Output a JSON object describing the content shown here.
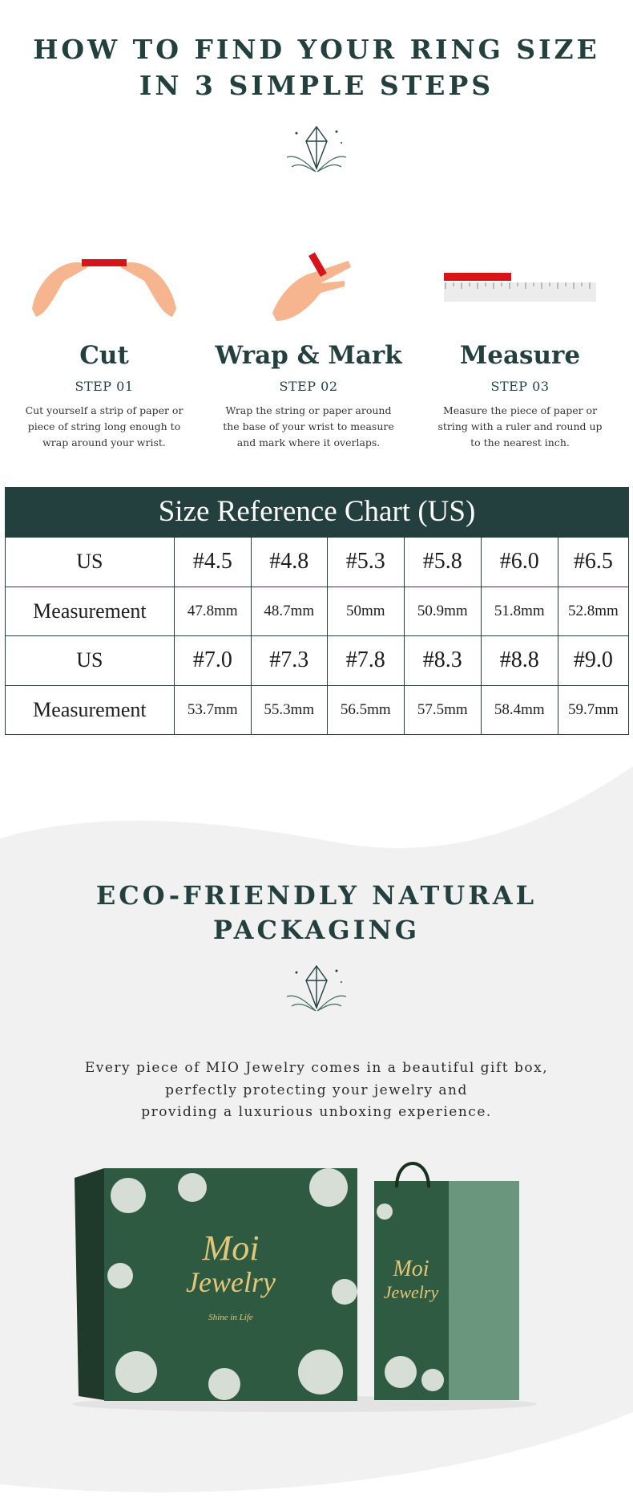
{
  "header": {
    "title_lines": [
      "HOW TO FIND YOUR RING SIZE",
      "IN 3 SIMPLE STEPS"
    ]
  },
  "steps": [
    {
      "title": "Cut",
      "step": "STEP 01",
      "text_lines": [
        "Cut yourself a strip of paper or",
        "piece of string long enough to",
        "wrap around your wrist."
      ]
    },
    {
      "title": "Wrap & Mark",
      "step": "STEP 02",
      "text_lines": [
        "Wrap the string or paper around",
        "the base of your wrist to measure",
        "and mark where it overlaps."
      ]
    },
    {
      "title": "Measure",
      "step": "STEP 03",
      "text_lines": [
        "Measure the piece of paper or",
        "string with a ruler and round up",
        "to the nearest inch."
      ]
    }
  ],
  "size_chart": {
    "title": "Size Reference Chart (US)",
    "rows": [
      [
        "US",
        "#4.5",
        "#4.8",
        "#5.3",
        "#5.8",
        "#6.0",
        "#6.5"
      ],
      [
        "Measurement",
        "47.8mm",
        "48.7mm",
        "50mm",
        "50.9mm",
        "51.8mm",
        "52.8mm"
      ],
      [
        "US",
        "#7.0",
        "#7.3",
        "#7.8",
        "#8.3",
        "#8.8",
        "#9.0"
      ],
      [
        "Measurement",
        "53.7mm",
        "55.3mm",
        "56.5mm",
        "57.5mm",
        "58.4mm",
        "59.7mm"
      ]
    ]
  },
  "packaging": {
    "title_lines": [
      "ECO-FRIENDLY NATURAL",
      "PACKAGING"
    ],
    "text_lines": [
      "Every piece of MIO Jewelry comes in a beautiful gift box,",
      "perfectly protecting your jewelry and",
      "providing a luxurious unboxing experience."
    ],
    "box": {
      "brand_lines": [
        "Moi",
        "Jewelry"
      ],
      "tagline": "Shine in Life"
    }
  }
}
